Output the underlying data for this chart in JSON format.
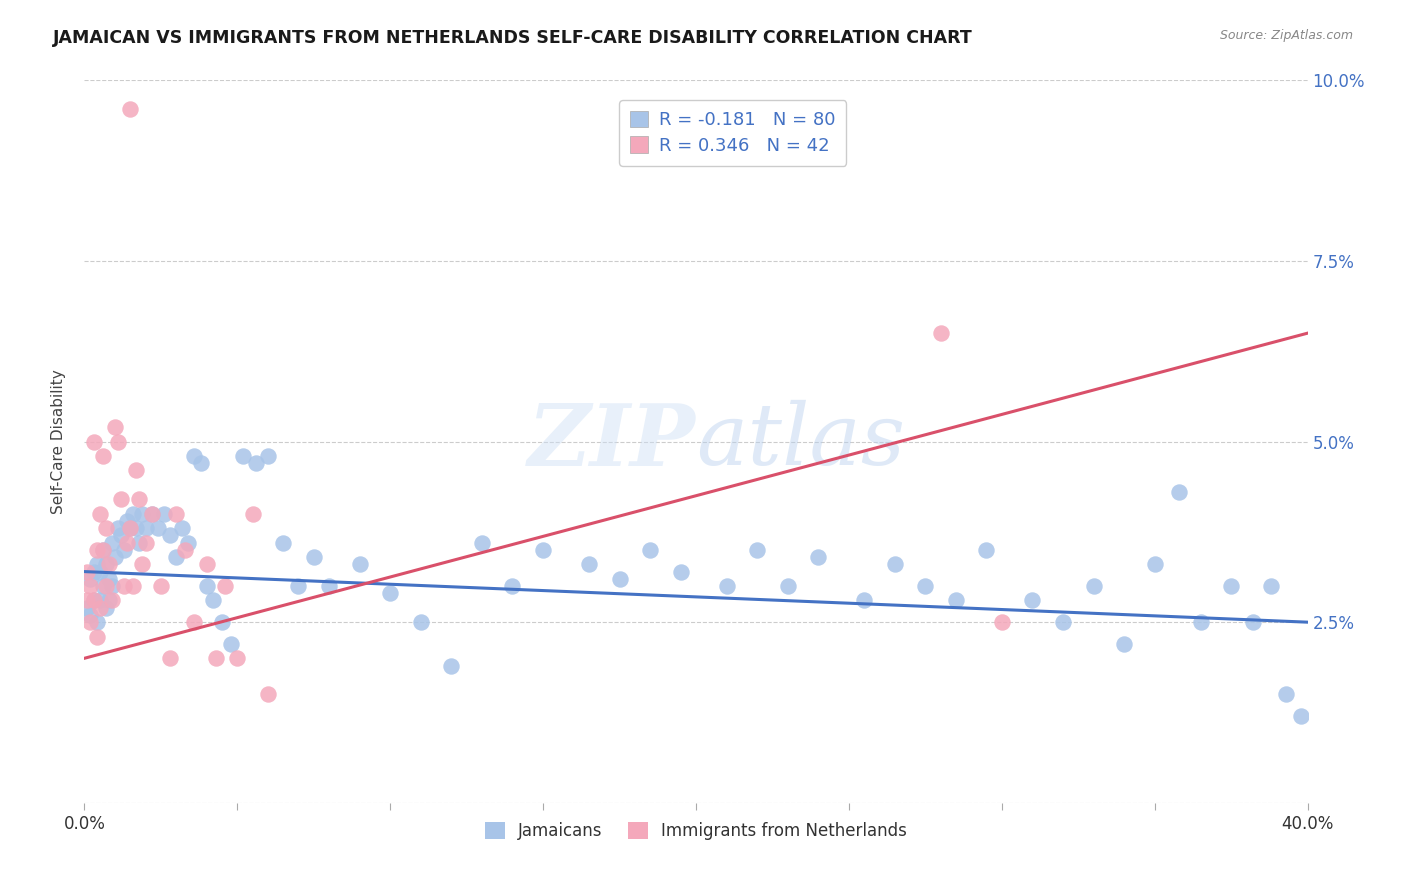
{
  "title": "JAMAICAN VS IMMIGRANTS FROM NETHERLANDS SELF-CARE DISABILITY CORRELATION CHART",
  "source": "Source: ZipAtlas.com",
  "ylabel": "Self-Care Disability",
  "xlim": [
    0.0,
    0.4
  ],
  "ylim": [
    0.0,
    0.1
  ],
  "yticks": [
    0.0,
    0.025,
    0.05,
    0.075,
    0.1
  ],
  "ytick_labels": [
    "",
    "2.5%",
    "5.0%",
    "7.5%",
    "10.0%"
  ],
  "xtick_vals": [
    0.0,
    0.05,
    0.1,
    0.15,
    0.2,
    0.25,
    0.3,
    0.35,
    0.4
  ],
  "xtick_labels": [
    "0.0%",
    "",
    "",
    "",
    "",
    "",
    "",
    "",
    "40.0%"
  ],
  "blue_color": "#a8c4e8",
  "pink_color": "#f4a8bb",
  "blue_line_color": "#4472c4",
  "pink_line_color": "#d9506a",
  "text_blue": "#4472c4",
  "title_color": "#1a1a1a",
  "source_color": "#888888",
  "watermark_zip": "ZIP",
  "watermark_atlas": "atlas",
  "legend_label_blue": "Jamaicans",
  "legend_label_pink": "Immigrants from Netherlands",
  "R_blue": -0.181,
  "N_blue": 80,
  "R_pink": 0.346,
  "N_pink": 42,
  "blue_line_x0": 0.0,
  "blue_line_y0": 0.032,
  "blue_line_x1": 0.4,
  "blue_line_y1": 0.025,
  "pink_line_x0": 0.0,
  "pink_line_y0": 0.02,
  "pink_line_x1": 0.4,
  "pink_line_y1": 0.065,
  "blue_x": [
    0.001,
    0.002,
    0.002,
    0.003,
    0.003,
    0.004,
    0.004,
    0.005,
    0.005,
    0.006,
    0.006,
    0.007,
    0.007,
    0.008,
    0.008,
    0.009,
    0.009,
    0.01,
    0.011,
    0.012,
    0.013,
    0.014,
    0.015,
    0.016,
    0.017,
    0.018,
    0.019,
    0.02,
    0.022,
    0.024,
    0.026,
    0.028,
    0.03,
    0.032,
    0.034,
    0.036,
    0.038,
    0.04,
    0.042,
    0.045,
    0.048,
    0.052,
    0.056,
    0.06,
    0.065,
    0.07,
    0.075,
    0.08,
    0.09,
    0.1,
    0.11,
    0.12,
    0.13,
    0.14,
    0.15,
    0.165,
    0.175,
    0.185,
    0.195,
    0.21,
    0.22,
    0.23,
    0.24,
    0.255,
    0.265,
    0.275,
    0.285,
    0.295,
    0.31,
    0.32,
    0.33,
    0.34,
    0.35,
    0.358,
    0.365,
    0.375,
    0.382,
    0.388,
    0.393,
    0.398
  ],
  "blue_y": [
    0.027,
    0.026,
    0.031,
    0.028,
    0.032,
    0.025,
    0.033,
    0.028,
    0.032,
    0.03,
    0.035,
    0.027,
    0.033,
    0.031,
    0.028,
    0.036,
    0.03,
    0.034,
    0.038,
    0.037,
    0.035,
    0.039,
    0.038,
    0.04,
    0.038,
    0.036,
    0.04,
    0.038,
    0.04,
    0.038,
    0.04,
    0.037,
    0.034,
    0.038,
    0.036,
    0.048,
    0.047,
    0.03,
    0.028,
    0.025,
    0.022,
    0.048,
    0.047,
    0.048,
    0.036,
    0.03,
    0.034,
    0.03,
    0.033,
    0.029,
    0.025,
    0.019,
    0.036,
    0.03,
    0.035,
    0.033,
    0.031,
    0.035,
    0.032,
    0.03,
    0.035,
    0.03,
    0.034,
    0.028,
    0.033,
    0.03,
    0.028,
    0.035,
    0.028,
    0.025,
    0.03,
    0.022,
    0.033,
    0.043,
    0.025,
    0.03,
    0.025,
    0.03,
    0.015,
    0.012
  ],
  "pink_x": [
    0.001,
    0.001,
    0.002,
    0.002,
    0.003,
    0.003,
    0.004,
    0.004,
    0.005,
    0.005,
    0.006,
    0.006,
    0.007,
    0.007,
    0.008,
    0.009,
    0.01,
    0.011,
    0.012,
    0.013,
    0.014,
    0.015,
    0.016,
    0.017,
    0.018,
    0.019,
    0.02,
    0.022,
    0.025,
    0.028,
    0.03,
    0.033,
    0.036,
    0.04,
    0.043,
    0.046,
    0.05,
    0.055,
    0.06,
    0.015,
    0.28,
    0.3
  ],
  "pink_y": [
    0.028,
    0.032,
    0.025,
    0.03,
    0.05,
    0.028,
    0.035,
    0.023,
    0.04,
    0.027,
    0.048,
    0.035,
    0.03,
    0.038,
    0.033,
    0.028,
    0.052,
    0.05,
    0.042,
    0.03,
    0.036,
    0.038,
    0.03,
    0.046,
    0.042,
    0.033,
    0.036,
    0.04,
    0.03,
    0.02,
    0.04,
    0.035,
    0.025,
    0.033,
    0.02,
    0.03,
    0.02,
    0.04,
    0.015,
    0.096,
    0.065,
    0.025
  ]
}
